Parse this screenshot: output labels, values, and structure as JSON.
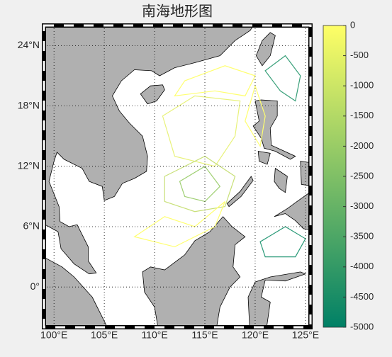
{
  "chart_data": {
    "type": "map",
    "title": "南海地形图",
    "xlim": [
      99,
      125.5
    ],
    "ylim": [
      -4,
      26
    ],
    "xticks": [
      {
        "value": 100,
        "label": "100°E"
      },
      {
        "value": 105,
        "label": "105°E"
      },
      {
        "value": 110,
        "label": "110°E"
      },
      {
        "value": 115,
        "label": "115°E"
      },
      {
        "value": 120,
        "label": "120°E"
      },
      {
        "value": 125,
        "label": "125°E"
      }
    ],
    "yticks": [
      {
        "value": 0,
        "label": "0°"
      },
      {
        "value": 6,
        "label": "6°N"
      },
      {
        "value": 12,
        "label": "12°N"
      },
      {
        "value": 18,
        "label": "18°N"
      },
      {
        "value": 24,
        "label": "24°N"
      }
    ],
    "grid": true,
    "colorbar": {
      "lim": [
        -5000,
        0
      ],
      "ticks": [
        0,
        -500,
        -1000,
        -1500,
        -2000,
        -2500,
        -3000,
        -3500,
        -4000,
        -4500,
        -5000
      ],
      "colors": [
        "#008066",
        "#ffff66"
      ]
    }
  }
}
